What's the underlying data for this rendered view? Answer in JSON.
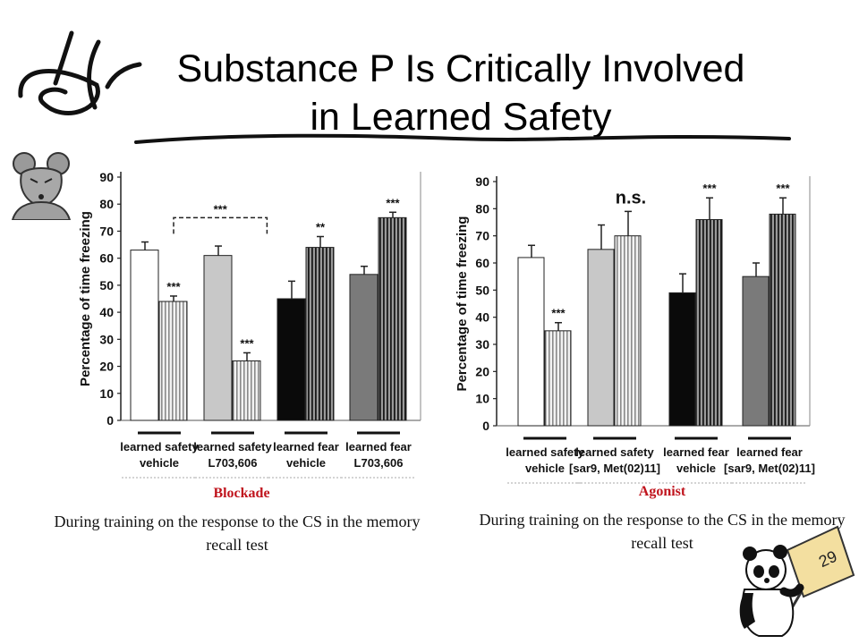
{
  "slide": {
    "title_line1": "Substance P Is Critically Involved",
    "title_line2": "in Learned Safety",
    "page_number": "29"
  },
  "captions": {
    "left_heading": "Blockade",
    "left_text": "During training on the response to the CS in the memory recall test",
    "right_heading": "Agonist",
    "right_text": "During training on the response to the CS in the memory recall test"
  },
  "colors": {
    "caption_heading": "#c0141d",
    "bar_white": "#ffffff",
    "bar_light_gray": "#c8c8c8",
    "bar_black": "#0a0a0a",
    "bar_mid_gray": "#7a7a7a"
  },
  "icons": [
    "ghost-squiggle-icon",
    "mouse-icon",
    "panda-icon"
  ],
  "chart_data": [
    {
      "type": "bar",
      "ylabel": "Percentage of time freezing",
      "ylim": [
        0,
        90
      ],
      "yticks": [
        "0",
        "10",
        "20",
        "30",
        "40",
        "50",
        "60",
        "70",
        "80",
        "90"
      ],
      "groups": [
        {
          "label_line1": "learned safety",
          "label_line2": "vehicle"
        },
        {
          "label_line1": "learned safety",
          "label_line2": "L703,606"
        },
        {
          "label_line1": "learned fear",
          "label_line2": "vehicle"
        },
        {
          "label_line1": "learned fear",
          "label_line2": "L703,606"
        }
      ],
      "bars": [
        {
          "group": 0,
          "value": 63,
          "error": 3,
          "fill": "white",
          "sig": ""
        },
        {
          "group": 0,
          "value": 44,
          "error": 2,
          "fill": "light-striped",
          "sig": "***"
        },
        {
          "group": 1,
          "value": 61,
          "error": 3.5,
          "fill": "light",
          "sig": ""
        },
        {
          "group": 1,
          "value": 22,
          "error": 3,
          "fill": "light-striped",
          "sig": "***"
        },
        {
          "group": 2,
          "value": 45,
          "error": 6.5,
          "fill": "black",
          "sig": ""
        },
        {
          "group": 2,
          "value": 64,
          "error": 4,
          "fill": "dark-striped",
          "sig": "**"
        },
        {
          "group": 3,
          "value": 54,
          "error": 3,
          "fill": "mid",
          "sig": ""
        },
        {
          "group": 3,
          "value": 75,
          "error": 2,
          "fill": "dark-striped",
          "sig": "***"
        }
      ],
      "bracket": {
        "label": "***",
        "from_group": 0,
        "to_group": 1
      }
    },
    {
      "type": "bar",
      "ylabel": "Percentage of time freezing",
      "ylim": [
        0,
        90
      ],
      "yticks": [
        "0",
        "10",
        "20",
        "30",
        "40",
        "50",
        "60",
        "70",
        "80",
        "90"
      ],
      "groups": [
        {
          "label_line1": "learned safety",
          "label_line2": "vehicle"
        },
        {
          "label_line1": "learned safety",
          "label_line2": "[sar9, Met(02)11]"
        },
        {
          "label_line1": "learned fear",
          "label_line2": "vehicle"
        },
        {
          "label_line1": "learned fear",
          "label_line2": "[sar9, Met(02)11]"
        }
      ],
      "bars": [
        {
          "group": 0,
          "value": 62,
          "error": 4.5,
          "fill": "white",
          "sig": ""
        },
        {
          "group": 0,
          "value": 35,
          "error": 3,
          "fill": "light-striped",
          "sig": "***"
        },
        {
          "group": 1,
          "value": 65,
          "error": 9,
          "fill": "light",
          "sig": ""
        },
        {
          "group": 1,
          "value": 70,
          "error": 9,
          "fill": "light-striped",
          "sig": ""
        },
        {
          "group": 2,
          "value": 49,
          "error": 7,
          "fill": "black",
          "sig": ""
        },
        {
          "group": 2,
          "value": 76,
          "error": 8,
          "fill": "dark-striped",
          "sig": "***"
        },
        {
          "group": 3,
          "value": 55,
          "error": 5,
          "fill": "mid",
          "sig": ""
        },
        {
          "group": 3,
          "value": 78,
          "error": 6,
          "fill": "dark-striped",
          "sig": "***"
        }
      ],
      "annotation": {
        "label": "n.s.",
        "group": 1
      }
    }
  ]
}
